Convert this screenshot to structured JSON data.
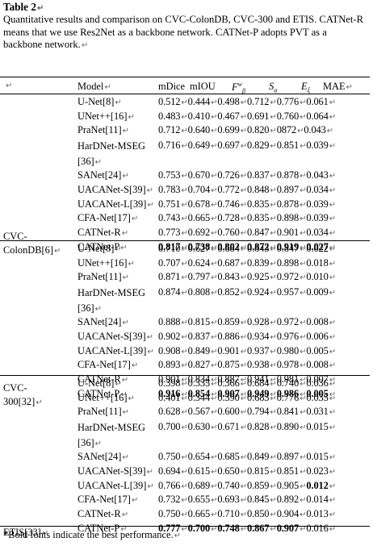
{
  "caption": {
    "title": "Table 2",
    "text": "Quantitative results and comparison on CVC-ColonDB, CVC-300 and ETIS. CATNet-R means that we use Res2Net as a backbone network. CATNet-P adopts PVT as a backbone network."
  },
  "header": {
    "model": "Model",
    "mdice": "mDice",
    "miou": "mIOU",
    "fbeta": "F",
    "fbeta_sup": "w",
    "fbeta_sub": "β",
    "salpha": "S",
    "salpha_sub": "α",
    "exi": "E",
    "exi_sub": "ξ",
    "mae": "MAE"
  },
  "paragraph_mark": "↵",
  "footer_note": "*Bold fonts indicate the best performance.",
  "groups": [
    {
      "dataset": "CVC-ColonDB[6]",
      "rows": [
        {
          "model": "U-Net[8]",
          "values": [
            "0.512",
            "0.444",
            "0.498",
            "0.712",
            "0.776",
            "0.061"
          ]
        },
        {
          "model": "UNet++[16]",
          "values": [
            "0.483",
            "0.410",
            "0.467",
            "0.691",
            "0.760",
            "0.064"
          ]
        },
        {
          "model": "PraNet[11]",
          "values": [
            "0.712",
            "0.640",
            "0.699",
            "0.820",
            "0872",
            "0.043"
          ]
        },
        {
          "model": "HarDNet-MSEG [36]",
          "values": [
            "0.716",
            "0.649",
            "0.697",
            "0.829",
            "0.851",
            "0.039"
          ]
        },
        {
          "model": "SANet[24]",
          "values": [
            "0.753",
            "0.670",
            "0.726",
            "0.837",
            "0.878",
            "0.043"
          ]
        },
        {
          "model": "UACANet-S[39]",
          "values": [
            "0.783",
            "0.704",
            "0.772",
            "0.848",
            "0.897",
            "0.034"
          ]
        },
        {
          "model": "UACANet-L[39]",
          "values": [
            "0.751",
            "0.678",
            "0.746",
            "0.835",
            "0.878",
            "0.039"
          ]
        },
        {
          "model": "CFA-Net[17]",
          "values": [
            "0.743",
            "0.665",
            "0.728",
            "0.835",
            "0.898",
            "0.039"
          ]
        },
        {
          "model": "CATNet-R",
          "values": [
            "0.773",
            "0.692",
            "0.760",
            "0.847",
            "0.901",
            "0.034"
          ]
        },
        {
          "model": "CATNet-P",
          "values": [
            "0.817",
            "0.738",
            "0.802",
            "0.872",
            "0.919",
            "0.027"
          ]
        }
      ]
    },
    {
      "dataset": "CVC-300[32]",
      "rows": [
        {
          "model": "U-Net[8]",
          "values": [
            "0.710",
            "0.627",
            "0.684",
            "0.843",
            "0.847",
            "0.022"
          ]
        },
        {
          "model": "UNet++[16]",
          "values": [
            "0.707",
            "0.624",
            "0.687",
            "0.839",
            "0.898",
            "0.018"
          ]
        },
        {
          "model": "PraNet[11]",
          "values": [
            "0.871",
            "0.797",
            "0.843",
            "0.925",
            "0.972",
            "0.010"
          ]
        },
        {
          "model": "HarDNet-MSEG [36]",
          "values": [
            "0.874",
            "0.808",
            "0.852",
            "0.924",
            "0.957",
            "0.009"
          ]
        },
        {
          "model": "SANet[24]",
          "values": [
            "0.888",
            "0.815",
            "0.859",
            "0.928",
            "0.972",
            "0.008"
          ]
        },
        {
          "model": "UACANet-S[39]",
          "values": [
            "0.902",
            "0.837",
            "0.886",
            "0.934",
            "0.976",
            "0.006"
          ]
        },
        {
          "model": "UACANet-L[39]",
          "values": [
            "0.908",
            "0.849",
            "0.901",
            "0.937",
            "0.980",
            "0.005"
          ]
        },
        {
          "model": "CFA-Net[17]",
          "values": [
            "0.893",
            "0.827",
            "0.875",
            "0.938",
            "0.978",
            "0.008"
          ]
        },
        {
          "model": "CATNet-R",
          "values": [
            "0.901",
            "0.834",
            "0.887",
            "0.941",
            "0.981",
            "0.007"
          ]
        },
        {
          "model": "CATNet-P",
          "values": [
            "0.916",
            "0.854",
            "0.907",
            "0.949",
            "0.986",
            "0.005"
          ]
        }
      ]
    },
    {
      "dataset": "ETIS[33]",
      "rows": [
        {
          "model": "U-Net[8]",
          "values": [
            "0.398",
            "0.335",
            "0.366",
            "0.684",
            "0.740",
            "0.036"
          ]
        },
        {
          "model": "UNet++[16]",
          "values": [
            "0.401",
            "0.344",
            "0.390",
            "0.683",
            "0.776",
            "0.035"
          ]
        },
        {
          "model": "PraNet[11]",
          "values": [
            "0.628",
            "0.567",
            "0.600",
            "0.794",
            "0.841",
            "0.031"
          ]
        },
        {
          "model": "HarDNet-MSEG [36]",
          "values": [
            "0.700",
            "0.630",
            "0.671",
            "0.828",
            "0.890",
            "0.015"
          ]
        },
        {
          "model": "SANet[24]",
          "values": [
            "0.750",
            "0.654",
            "0.685",
            "0.849",
            "0.897",
            "0.015"
          ]
        },
        {
          "model": "UACANet-S[39]",
          "values": [
            "0.694",
            "0.615",
            "0.650",
            "0.815",
            "0.851",
            "0.023"
          ]
        },
        {
          "model": "UACANet-L[39]",
          "values": [
            "0.766",
            "0.689",
            "0.740",
            "0.859",
            "0.905",
            "0.012"
          ]
        },
        {
          "model": "CFA-Net[17]",
          "values": [
            "0.732",
            "0.655",
            "0.693",
            "0.845",
            "0.892",
            "0.014"
          ]
        },
        {
          "model": "CATNet-R",
          "values": [
            "0.750",
            "0.665",
            "0.710",
            "0.850",
            "0.904",
            "0.013"
          ]
        },
        {
          "model": "CATNet-P",
          "values": [
            "0.777",
            "0.700",
            "0.748",
            "0.867",
            "0.907",
            "0.016"
          ]
        }
      ]
    }
  ]
}
